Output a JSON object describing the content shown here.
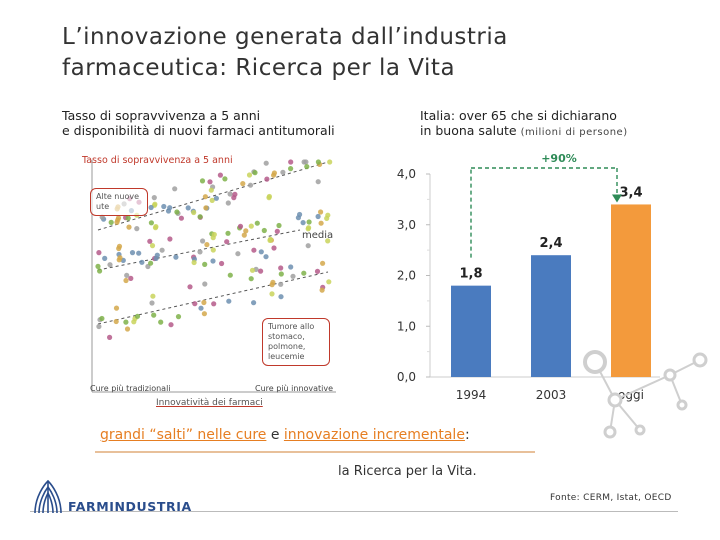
{
  "slide": {
    "title_line1": "L’innovazione generata dall’industria",
    "title_line2": "farmaceutica: Ricerca per la Vita",
    "left_subtitle_line1": "Tasso di sopravvivenza a 5 anni",
    "left_subtitle_line2": "e disponibilità di nuovi farmaci antitumorali",
    "right_subtitle_line1": "Italia: over 65 che si dichiarano",
    "right_subtitle_line2": "in buona salute",
    "right_subtitle_unit": "(milioni di persone)",
    "bottom_part1": "grandi “salti” nelle cure",
    "bottom_part2": " e ",
    "bottom_part3": "innovazione incrementale",
    "bottom_part4": ":",
    "ricerca": "la Ricerca per la Vita.",
    "fonte": "Fonte: CERM, Istat, OECD",
    "logo_text": "FARMINDUSTRIA"
  },
  "colors": {
    "blue": "#4a7bbf",
    "orange": "#f39a3c",
    "green": "#2e8b57",
    "accent": "#e67e22"
  },
  "chart_data": [
    {
      "type": "scatter",
      "title": "Tasso di sopravvivenza a 5 anni",
      "xlabel": "Innovatività dei farmaci",
      "x_tick_labels": [
        "Cure più tradizionali",
        "Cure più innovative"
      ],
      "annotations": {
        "high": "Alte nuove ute",
        "media": "media",
        "low_line1": "Tumore allo",
        "low_line2": "stomaco,",
        "low_line3": "polmone,",
        "low_line4": "leucemie"
      },
      "series_colors": [
        "#7fb24a",
        "#b55a8a",
        "#d4a84b",
        "#6d8fb0",
        "#a0a0a0",
        "#c9d35c"
      ]
    },
    {
      "type": "bar",
      "categories": [
        "1994",
        "2003",
        "oggi"
      ],
      "values": [
        1.8,
        2.4,
        3.4
      ],
      "value_labels": [
        "1,8",
        "2,4",
        "3,4"
      ],
      "bar_colors": [
        "#4a7bbf",
        "#4a7bbf",
        "#f39a3c"
      ],
      "y_ticks": [
        0,
        1,
        2,
        3,
        4
      ],
      "y_tick_labels": [
        "0,0",
        "1,0",
        "2,0",
        "3,0",
        "4,0"
      ],
      "ylim": [
        0,
        4
      ],
      "growth_label": "+90%"
    }
  ]
}
